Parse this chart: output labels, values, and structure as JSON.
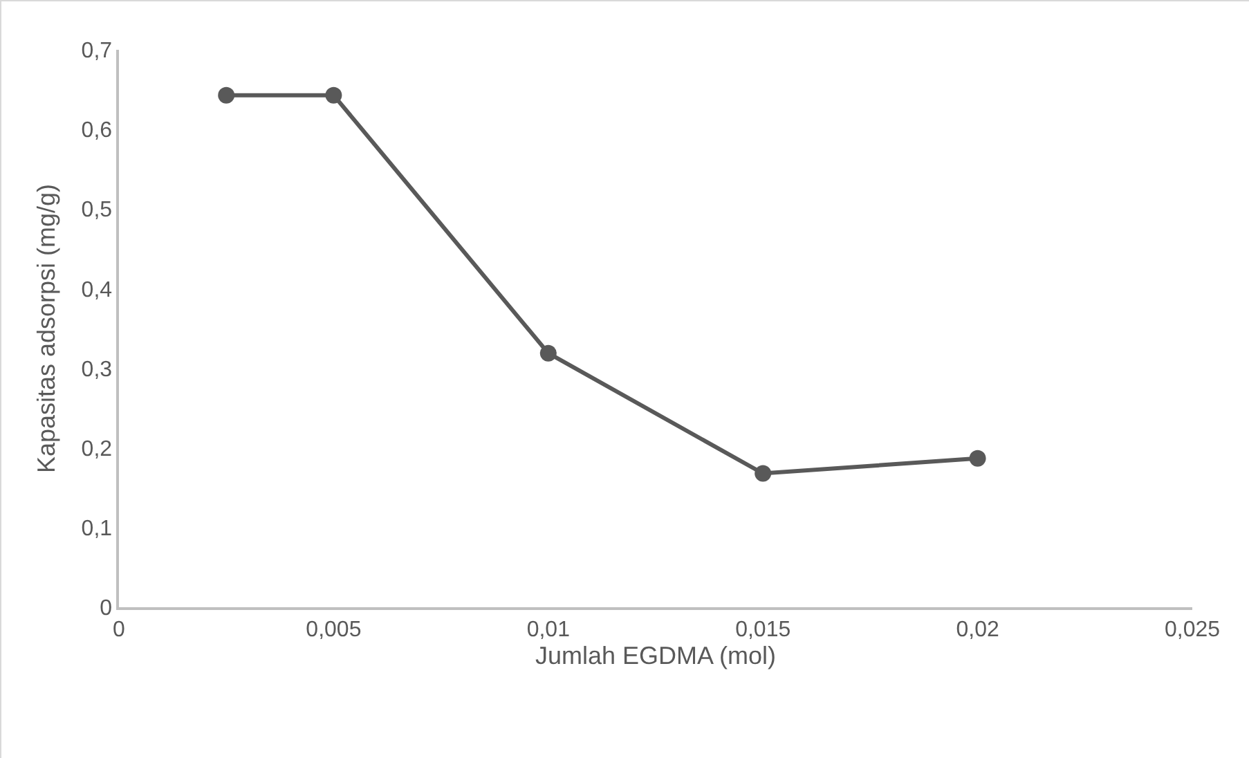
{
  "chart_data": {
    "type": "line",
    "xlabel": "Jumlah EGDMA (mol)",
    "ylabel": "Kapasitas adsorpsi (mg/g)",
    "x": [
      0.0025,
      0.005,
      0.01,
      0.015,
      0.02
    ],
    "series": [
      {
        "color": "#595959",
        "values": [
          0.643,
          0.643,
          0.319,
          0.168,
          0.187
        ]
      }
    ],
    "xlim": [
      0,
      0.025
    ],
    "xticks": [
      0,
      {
        "value": 0.005,
        "label": "0,005"
      },
      {
        "value": 0.01,
        "label": "0,01"
      },
      {
        "value": 0.015,
        "label": "0,015"
      },
      {
        "value": 0.02,
        "label": "0,02"
      },
      {
        "value": 0.025,
        "label": "0,025"
      }
    ],
    "ylim": [
      0,
      0.7
    ],
    "yticks": [
      0,
      {
        "value": 0.1,
        "label": "0,1"
      },
      {
        "value": 0.2,
        "label": "0,2"
      },
      {
        "value": 0.3,
        "label": "0,3"
      },
      {
        "value": 0.4,
        "label": "0,4"
      },
      {
        "value": 0.5,
        "label": "0,5"
      },
      {
        "value": 0.6,
        "label": "0,6"
      },
      {
        "value": 0.7,
        "label": "0,7"
      }
    ],
    "grid": false,
    "marker": "circle",
    "line_style": "solid"
  }
}
